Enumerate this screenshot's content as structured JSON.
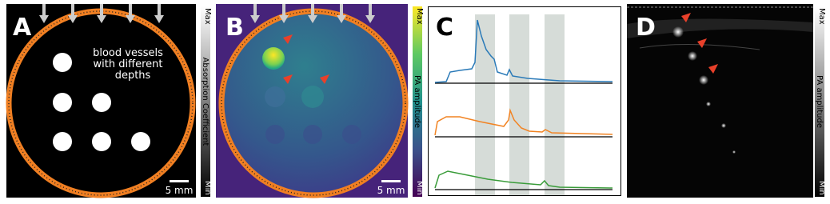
{
  "panels": [
    {
      "label": "A",
      "annotation": [
        "blood vessels",
        "with different",
        "depths"
      ],
      "scale_bar": "5 mm",
      "colorbar": {
        "max": "Max",
        "title": "Absorption Coefficient",
        "min": "Min"
      }
    },
    {
      "label": "B",
      "scale_bar": "5 mm",
      "colorbar": {
        "max": "Max",
        "title": "PA amplitude",
        "min": "Min"
      }
    },
    {
      "label": "C"
    },
    {
      "label": "D",
      "colorbar": {
        "max": "Max",
        "title": "PA amplitude",
        "min": "Min"
      }
    }
  ]
}
